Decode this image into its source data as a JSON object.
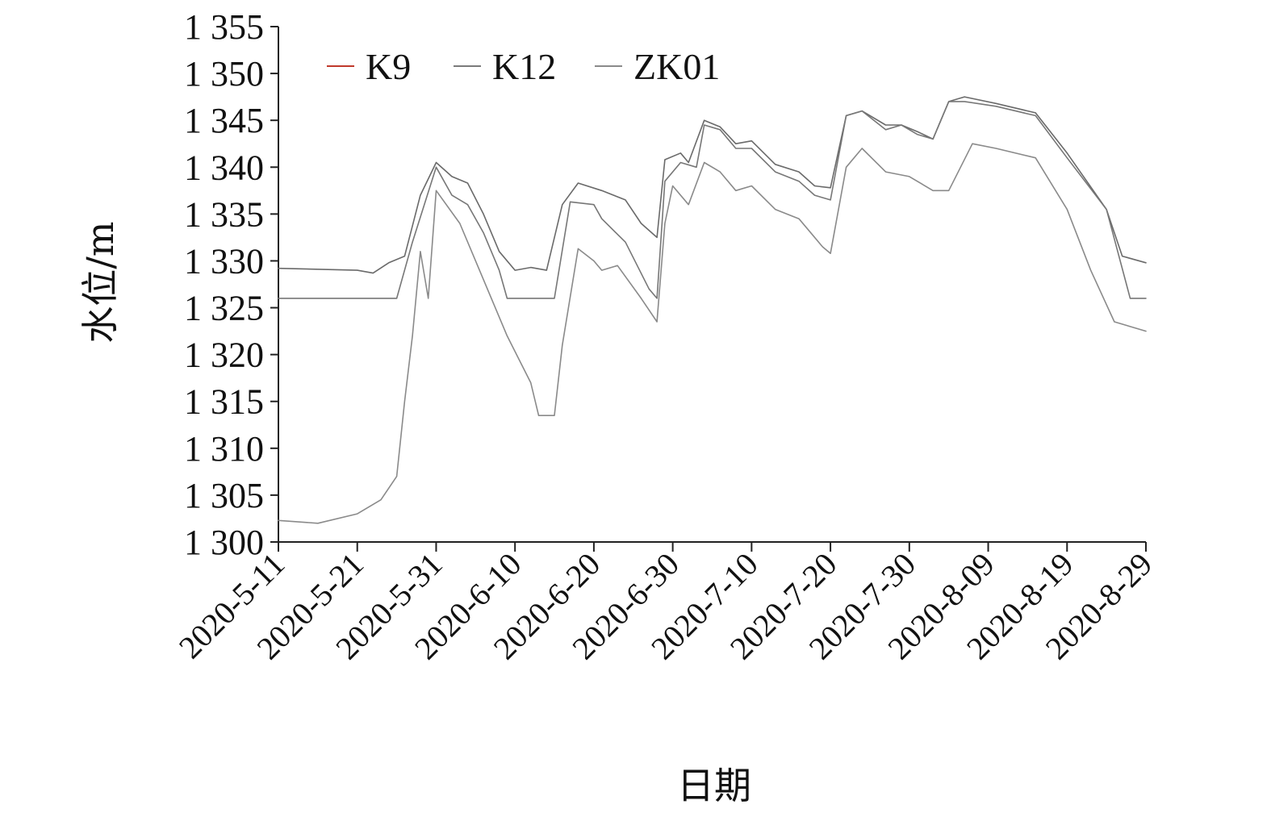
{
  "chart_data": {
    "type": "line",
    "title": "",
    "xlabel": "日期",
    "ylabel": "水位/m",
    "ylim": [
      1300,
      1355
    ],
    "yticks": [
      1300,
      1305,
      1310,
      1315,
      1320,
      1325,
      1330,
      1335,
      1340,
      1345,
      1350,
      1355
    ],
    "ytick_labels": [
      "1 300",
      "1 305",
      "1 310",
      "1 315",
      "1 320",
      "1 325",
      "1 330",
      "1 335",
      "1 340",
      "1 345",
      "1 350",
      "1 355"
    ],
    "xlim": [
      "2020-05-11",
      "2020-08-29"
    ],
    "xtick_labels": [
      "2020-5-11",
      "2020-5-21",
      "2020-5-31",
      "2020-6-10",
      "2020-6-20",
      "2020-6-30",
      "2020-7-10",
      "2020-7-20",
      "2020-7-30",
      "2020-8-09",
      "2020-8-19",
      "2020-8-29"
    ],
    "xtick_dates": [
      "2020-05-11",
      "2020-05-21",
      "2020-05-31",
      "2020-06-10",
      "2020-06-20",
      "2020-06-30",
      "2020-07-10",
      "2020-07-20",
      "2020-07-30",
      "2020-08-09",
      "2020-08-19",
      "2020-08-29"
    ],
    "grid": false,
    "legend_position": "top-left",
    "series": [
      {
        "name": "K9",
        "color": "#6a6a6a",
        "legend_color": "#c0392b",
        "points": [
          [
            "2020-05-11",
            1329.2
          ],
          [
            "2020-05-21",
            1329.0
          ],
          [
            "2020-05-23",
            1328.7
          ],
          [
            "2020-05-25",
            1329.8
          ],
          [
            "2020-05-27",
            1330.5
          ],
          [
            "2020-05-29",
            1337.0
          ],
          [
            "2020-05-31",
            1340.5
          ],
          [
            "2020-06-02",
            1339.0
          ],
          [
            "2020-06-04",
            1338.3
          ],
          [
            "2020-06-06",
            1335.0
          ],
          [
            "2020-06-08",
            1331.0
          ],
          [
            "2020-06-10",
            1329.0
          ],
          [
            "2020-06-12",
            1329.3
          ],
          [
            "2020-06-14",
            1329.0
          ],
          [
            "2020-06-16",
            1336.0
          ],
          [
            "2020-06-18",
            1338.3
          ],
          [
            "2020-06-21",
            1337.5
          ],
          [
            "2020-06-24",
            1336.5
          ],
          [
            "2020-06-26",
            1334.0
          ],
          [
            "2020-06-28",
            1332.5
          ],
          [
            "2020-06-29",
            1340.8
          ],
          [
            "2020-07-01",
            1341.5
          ],
          [
            "2020-07-02",
            1340.5
          ],
          [
            "2020-07-04",
            1345.0
          ],
          [
            "2020-07-06",
            1344.3
          ],
          [
            "2020-07-08",
            1342.5
          ],
          [
            "2020-07-10",
            1342.8
          ],
          [
            "2020-07-13",
            1340.3
          ],
          [
            "2020-07-16",
            1339.5
          ],
          [
            "2020-07-18",
            1338.0
          ],
          [
            "2020-07-20",
            1337.8
          ],
          [
            "2020-07-22",
            1345.5
          ],
          [
            "2020-07-24",
            1346.0
          ],
          [
            "2020-07-27",
            1344.5
          ],
          [
            "2020-07-29",
            1344.5
          ],
          [
            "2020-07-31",
            1343.8
          ],
          [
            "2020-08-02",
            1343.0
          ],
          [
            "2020-08-04",
            1347.0
          ],
          [
            "2020-08-06",
            1347.5
          ],
          [
            "2020-08-10",
            1346.8
          ],
          [
            "2020-08-15",
            1345.8
          ],
          [
            "2020-08-19",
            1341.5
          ],
          [
            "2020-08-24",
            1335.5
          ],
          [
            "2020-08-26",
            1330.5
          ],
          [
            "2020-08-29",
            1329.8
          ]
        ]
      },
      {
        "name": "K12",
        "color": "#777777",
        "legend_color": "#7a7a7a",
        "points": [
          [
            "2020-05-11",
            1326.0
          ],
          [
            "2020-05-26",
            1326.0
          ],
          [
            "2020-05-28",
            1332.0
          ],
          [
            "2020-05-31",
            1340.0
          ],
          [
            "2020-06-02",
            1337.0
          ],
          [
            "2020-06-04",
            1336.0
          ],
          [
            "2020-06-06",
            1333.0
          ],
          [
            "2020-06-08",
            1329.0
          ],
          [
            "2020-06-09",
            1326.0
          ],
          [
            "2020-06-15",
            1326.0
          ],
          [
            "2020-06-17",
            1336.3
          ],
          [
            "2020-06-20",
            1336.0
          ],
          [
            "2020-06-21",
            1334.5
          ],
          [
            "2020-06-24",
            1332.0
          ],
          [
            "2020-06-27",
            1327.0
          ],
          [
            "2020-06-28",
            1326.0
          ],
          [
            "2020-06-29",
            1338.5
          ],
          [
            "2020-07-01",
            1340.5
          ],
          [
            "2020-07-03",
            1340.0
          ],
          [
            "2020-07-04",
            1344.5
          ],
          [
            "2020-07-06",
            1344.0
          ],
          [
            "2020-07-08",
            1342.0
          ],
          [
            "2020-07-10",
            1342.0
          ],
          [
            "2020-07-13",
            1339.5
          ],
          [
            "2020-07-16",
            1338.5
          ],
          [
            "2020-07-18",
            1337.0
          ],
          [
            "2020-07-20",
            1336.5
          ],
          [
            "2020-07-22",
            1345.5
          ],
          [
            "2020-07-24",
            1346.0
          ],
          [
            "2020-07-27",
            1344.0
          ],
          [
            "2020-07-29",
            1344.5
          ],
          [
            "2020-07-31",
            1343.5
          ],
          [
            "2020-08-02",
            1343.0
          ],
          [
            "2020-08-04",
            1347.0
          ],
          [
            "2020-08-06",
            1347.0
          ],
          [
            "2020-08-10",
            1346.5
          ],
          [
            "2020-08-15",
            1345.5
          ],
          [
            "2020-08-19",
            1341.0
          ],
          [
            "2020-08-24",
            1335.5
          ],
          [
            "2020-08-27",
            1326.0
          ],
          [
            "2020-08-29",
            1326.0
          ]
        ]
      },
      {
        "name": "ZK01",
        "color": "#8a8a8a",
        "legend_color": "#8a8a8a",
        "points": [
          [
            "2020-05-11",
            1302.3
          ],
          [
            "2020-05-16",
            1302.0
          ],
          [
            "2020-05-21",
            1303.0
          ],
          [
            "2020-05-24",
            1304.5
          ],
          [
            "2020-05-26",
            1307.0
          ],
          [
            "2020-05-27",
            1315.0
          ],
          [
            "2020-05-28",
            1322.0
          ],
          [
            "2020-05-29",
            1331.0
          ],
          [
            "2020-05-30",
            1326.0
          ],
          [
            "2020-05-31",
            1337.5
          ],
          [
            "2020-06-03",
            1334.0
          ],
          [
            "2020-06-06",
            1328.0
          ],
          [
            "2020-06-09",
            1322.0
          ],
          [
            "2020-06-12",
            1317.0
          ],
          [
            "2020-06-13",
            1313.5
          ],
          [
            "2020-06-15",
            1313.5
          ],
          [
            "2020-06-16",
            1321.0
          ],
          [
            "2020-06-18",
            1331.3
          ],
          [
            "2020-06-20",
            1330.0
          ],
          [
            "2020-06-21",
            1329.0
          ],
          [
            "2020-06-23",
            1329.5
          ],
          [
            "2020-06-26",
            1326.0
          ],
          [
            "2020-06-28",
            1323.5
          ],
          [
            "2020-06-29",
            1334.0
          ],
          [
            "2020-06-30",
            1338.0
          ],
          [
            "2020-07-02",
            1336.0
          ],
          [
            "2020-07-04",
            1340.5
          ],
          [
            "2020-07-06",
            1339.5
          ],
          [
            "2020-07-08",
            1337.5
          ],
          [
            "2020-07-10",
            1338.0
          ],
          [
            "2020-07-13",
            1335.5
          ],
          [
            "2020-07-16",
            1334.5
          ],
          [
            "2020-07-19",
            1331.5
          ],
          [
            "2020-07-20",
            1330.8
          ],
          [
            "2020-07-22",
            1340.0
          ],
          [
            "2020-07-24",
            1342.0
          ],
          [
            "2020-07-27",
            1339.5
          ],
          [
            "2020-07-30",
            1339.0
          ],
          [
            "2020-08-02",
            1337.5
          ],
          [
            "2020-08-04",
            1337.5
          ],
          [
            "2020-08-07",
            1342.5
          ],
          [
            "2020-08-10",
            1342.0
          ],
          [
            "2020-08-15",
            1341.0
          ],
          [
            "2020-08-19",
            1335.5
          ],
          [
            "2020-08-22",
            1329.0
          ],
          [
            "2020-08-25",
            1323.5
          ],
          [
            "2020-08-29",
            1322.5
          ]
        ]
      }
    ]
  }
}
